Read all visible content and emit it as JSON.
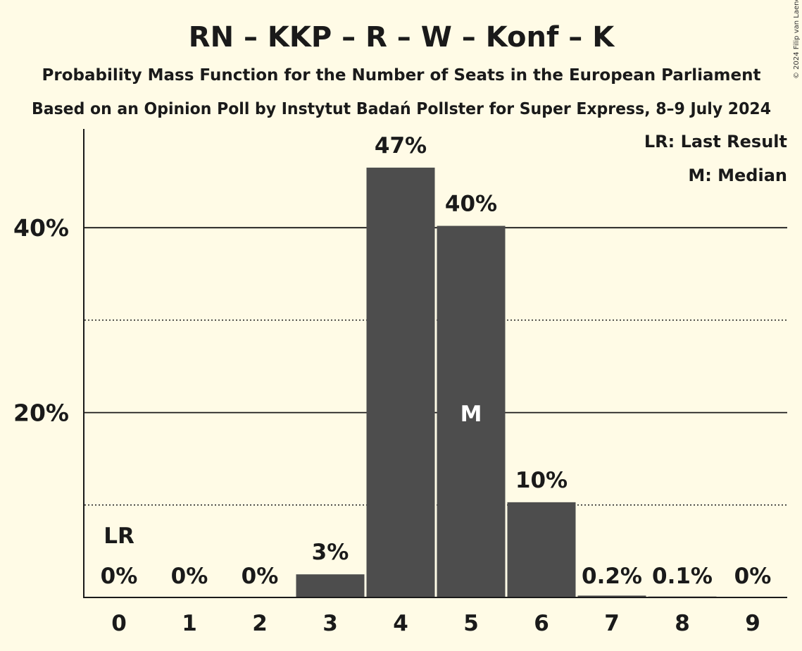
{
  "chart_data": {
    "type": "bar",
    "title": "RN – KKP – R – W – Konf – K",
    "subtitle_1": "Probability Mass Function for the Number of Seats in the European Parliament",
    "subtitle_2": "Based on an Opinion Poll by Instytut Badań Pollster for Super Express, 8–9 July 2024",
    "copyright": "© 2024 Filip van Laenen",
    "categories": [
      "0",
      "1",
      "2",
      "3",
      "4",
      "5",
      "6",
      "7",
      "8",
      "9"
    ],
    "values": [
      0,
      0,
      0,
      2.5,
      46.5,
      40.2,
      10.3,
      0.2,
      0.1,
      0
    ],
    "value_labels": [
      "0%",
      "0%",
      "0%",
      "3%",
      "47%",
      "40%",
      "10%",
      "0.2%",
      "0.1%",
      "0%"
    ],
    "ylim": [
      0,
      50
    ],
    "yticks": [
      {
        "value": 20,
        "label": "20%"
      },
      {
        "value": 40,
        "label": "40%"
      }
    ],
    "minor_gridlines": [
      10,
      30
    ],
    "bar_color": "#4d4d4d",
    "background_color": "#fffbe6",
    "last_result_index": 0,
    "last_result_marker": "LR",
    "median_index": 5,
    "median_marker": "M",
    "legend": [
      "LR: Last Result",
      "M: Median"
    ],
    "legend_position": "top-right"
  }
}
